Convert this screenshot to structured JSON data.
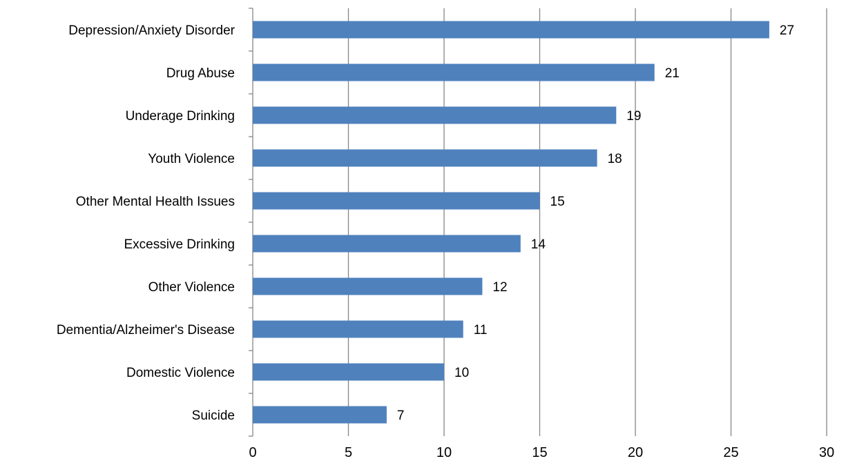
{
  "chart_data": {
    "type": "bar",
    "orientation": "horizontal",
    "title": "",
    "xlabel": "",
    "ylabel": "",
    "categories": [
      "Depression/Anxiety Disorder",
      "Drug Abuse",
      "Underage Drinking",
      "Youth Violence",
      "Other Mental Health Issues",
      "Excessive Drinking",
      "Other Violence",
      "Dementia/Alzheimer's Disease",
      "Domestic Violence",
      "Suicide"
    ],
    "values": [
      27,
      21,
      19,
      18,
      15,
      14,
      12,
      11,
      10,
      7
    ],
    "data_labels": [
      "27",
      "21",
      "19",
      "18",
      "15",
      "14",
      "12",
      "11",
      "10",
      "7"
    ],
    "xlim": [
      0,
      30
    ],
    "x_ticks": [
      0,
      5,
      10,
      15,
      20,
      25,
      30
    ],
    "x_tick_labels": [
      "0",
      "5",
      "10",
      "15",
      "20",
      "25",
      "30"
    ],
    "grid": "vertical",
    "legend": "none",
    "bar_color": "#4f81bd",
    "grid_color": "#868686"
  }
}
